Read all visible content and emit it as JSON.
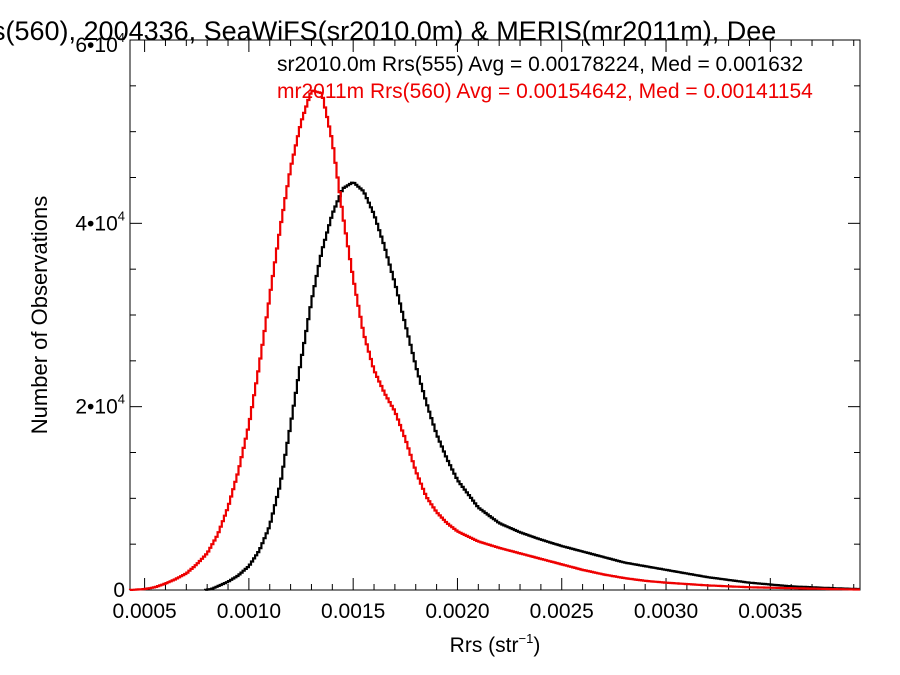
{
  "chart_data": {
    "type": "line",
    "title": "s(560), 2004336, SeaWiFS(sr2010.0m) & MERIS(mr2011m), Dee",
    "xlabel": "Rrs (str",
    "xlabel_sup": "−1",
    "xlabel_close": ")",
    "ylabel": "Number of Observations",
    "xlim": [
      0.00043,
      0.00393
    ],
    "ylim": [
      0,
      60000
    ],
    "x_ticks": [
      0.0005,
      0.001,
      0.0015,
      0.002,
      0.0025,
      0.003,
      0.0035
    ],
    "x_tick_labels": [
      "0.0005",
      "0.0010",
      "0.0015",
      "0.0020",
      "0.0025",
      "0.0030",
      "0.0035"
    ],
    "y_ticks": [
      {
        "value": 0,
        "base": "0",
        "exp": ""
      },
      {
        "value": 20000,
        "base": "2•10",
        "exp": "4"
      },
      {
        "value": 40000,
        "base": "4•10",
        "exp": "4"
      },
      {
        "value": 60000,
        "base": "6•10",
        "exp": "4"
      }
    ],
    "grid": false,
    "legend_position": "top-right",
    "series": [
      {
        "name": "sr2010.0m Rrs(555) Avg = 0.00178224, Med = 0.001632",
        "color": "#000000",
        "points": [
          [
            0.00079,
            0
          ],
          [
            0.00082,
            100
          ],
          [
            0.00085,
            400
          ],
          [
            0.0009,
            900
          ],
          [
            0.00095,
            1600
          ],
          [
            0.001,
            2600
          ],
          [
            0.00105,
            4300
          ],
          [
            0.0011,
            7000
          ],
          [
            0.00115,
            11500
          ],
          [
            0.0012,
            18000
          ],
          [
            0.00125,
            25000
          ],
          [
            0.0013,
            31500
          ],
          [
            0.00135,
            37000
          ],
          [
            0.0014,
            41000
          ],
          [
            0.00145,
            43800
          ],
          [
            0.0015,
            44500
          ],
          [
            0.00155,
            43500
          ],
          [
            0.0016,
            41000
          ],
          [
            0.00165,
            37500
          ],
          [
            0.0017,
            33500
          ],
          [
            0.00175,
            29000
          ],
          [
            0.0018,
            24500
          ],
          [
            0.00185,
            20500
          ],
          [
            0.0019,
            17000
          ],
          [
            0.00195,
            14300
          ],
          [
            0.002,
            12000
          ],
          [
            0.0021,
            9000
          ],
          [
            0.0022,
            7300
          ],
          [
            0.0023,
            6300
          ],
          [
            0.0024,
            5500
          ],
          [
            0.0025,
            4800
          ],
          [
            0.0026,
            4200
          ],
          [
            0.0027,
            3600
          ],
          [
            0.0028,
            3000
          ],
          [
            0.0029,
            2600
          ],
          [
            0.003,
            2200
          ],
          [
            0.0031,
            1800
          ],
          [
            0.0032,
            1400
          ],
          [
            0.0033,
            1100
          ],
          [
            0.0034,
            800
          ],
          [
            0.0035,
            600
          ],
          [
            0.0036,
            400
          ],
          [
            0.0037,
            300
          ],
          [
            0.0038,
            200
          ],
          [
            0.00393,
            100
          ]
        ]
      },
      {
        "name": "mr2011m Rrs(560) Avg = 0.00154642, Med = 0.00141154",
        "color": "#ee0000",
        "points": [
          [
            0.00043,
            0
          ],
          [
            0.0005,
            100
          ],
          [
            0.00055,
            300
          ],
          [
            0.0006,
            700
          ],
          [
            0.00065,
            1200
          ],
          [
            0.0007,
            1800
          ],
          [
            0.00075,
            2800
          ],
          [
            0.0008,
            4000
          ],
          [
            0.00085,
            6000
          ],
          [
            0.0009,
            9000
          ],
          [
            0.00095,
            13000
          ],
          [
            0.001,
            18000
          ],
          [
            0.00105,
            24500
          ],
          [
            0.0011,
            32000
          ],
          [
            0.00115,
            39500
          ],
          [
            0.0012,
            46000
          ],
          [
            0.00125,
            51000
          ],
          [
            0.0013,
            54500
          ],
          [
            0.00135,
            54200
          ],
          [
            0.0014,
            49000
          ],
          [
            0.00145,
            41000
          ],
          [
            0.0015,
            34000
          ],
          [
            0.00155,
            28000
          ],
          [
            0.0016,
            24000
          ],
          [
            0.00165,
            21500
          ],
          [
            0.0017,
            19500
          ],
          [
            0.00175,
            16500
          ],
          [
            0.0018,
            13000
          ],
          [
            0.00185,
            10200
          ],
          [
            0.0019,
            8500
          ],
          [
            0.00195,
            7300
          ],
          [
            0.002,
            6400
          ],
          [
            0.0021,
            5300
          ],
          [
            0.0022,
            4600
          ],
          [
            0.0023,
            4000
          ],
          [
            0.0024,
            3400
          ],
          [
            0.0025,
            2800
          ],
          [
            0.0026,
            2200
          ],
          [
            0.0027,
            1700
          ],
          [
            0.0028,
            1300
          ],
          [
            0.0029,
            1000
          ],
          [
            0.003,
            800
          ],
          [
            0.0032,
            500
          ],
          [
            0.0034,
            300
          ],
          [
            0.0036,
            200
          ],
          [
            0.0038,
            100
          ],
          [
            0.00393,
            50
          ]
        ]
      }
    ]
  }
}
